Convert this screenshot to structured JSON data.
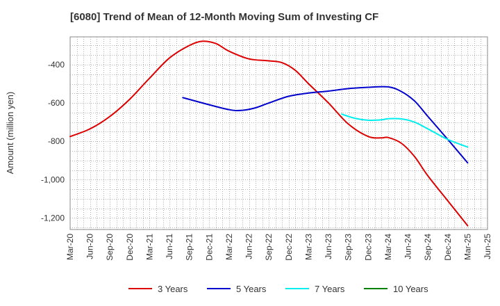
{
  "chart_data": {
    "type": "line",
    "title": "[6080]  Trend of Mean of 12-Month Moving Sum of Investing CF",
    "xlabel": "",
    "ylabel": "Amount (million yen)",
    "ylim": [
      -1260,
      -255
    ],
    "yticks": [
      -400,
      -600,
      -800,
      -1000,
      -1200
    ],
    "ytick_labels": [
      "-400",
      "-600",
      "-800",
      "-1,000",
      "-1,200"
    ],
    "x_range_months": [
      0,
      63
    ],
    "xticks": [
      {
        "m": 0,
        "label": "Mar-20"
      },
      {
        "m": 3,
        "label": "Jun-20"
      },
      {
        "m": 6,
        "label": "Sep-20"
      },
      {
        "m": 9,
        "label": "Dec-20"
      },
      {
        "m": 12,
        "label": "Mar-21"
      },
      {
        "m": 15,
        "label": "Jun-21"
      },
      {
        "m": 18,
        "label": "Sep-21"
      },
      {
        "m": 21,
        "label": "Dec-21"
      },
      {
        "m": 24,
        "label": "Mar-22"
      },
      {
        "m": 27,
        "label": "Jun-22"
      },
      {
        "m": 30,
        "label": "Sep-22"
      },
      {
        "m": 33,
        "label": "Dec-22"
      },
      {
        "m": 36,
        "label": "Mar-23"
      },
      {
        "m": 39,
        "label": "Jun-23"
      },
      {
        "m": 42,
        "label": "Sep-23"
      },
      {
        "m": 45,
        "label": "Dec-23"
      },
      {
        "m": 48,
        "label": "Mar-24"
      },
      {
        "m": 51,
        "label": "Jun-24"
      },
      {
        "m": 54,
        "label": "Sep-24"
      },
      {
        "m": 57,
        "label": "Dec-24"
      },
      {
        "m": 60,
        "label": "Mar-25"
      },
      {
        "m": 63,
        "label": "Jun-25"
      }
    ],
    "series": [
      {
        "name": "3 Years",
        "color": "#dd0000",
        "points": [
          [
            0,
            -775
          ],
          [
            3,
            -735
          ],
          [
            6,
            -670
          ],
          [
            9,
            -580
          ],
          [
            12,
            -470
          ],
          [
            15,
            -365
          ],
          [
            18,
            -300
          ],
          [
            20,
            -278
          ],
          [
            22,
            -290
          ],
          [
            24,
            -330
          ],
          [
            27,
            -370
          ],
          [
            30,
            -380
          ],
          [
            32,
            -390
          ],
          [
            34,
            -430
          ],
          [
            36,
            -500
          ],
          [
            39,
            -600
          ],
          [
            42,
            -710
          ],
          [
            45,
            -775
          ],
          [
            47,
            -782
          ],
          [
            48,
            -780
          ],
          [
            50,
            -810
          ],
          [
            52,
            -880
          ],
          [
            54,
            -980
          ],
          [
            57,
            -1110
          ],
          [
            60,
            -1240
          ]
        ]
      },
      {
        "name": "5 Years",
        "color": "#0000cc",
        "points": [
          [
            17,
            -572
          ],
          [
            20,
            -600
          ],
          [
            24,
            -635
          ],
          [
            26,
            -638
          ],
          [
            28,
            -625
          ],
          [
            30,
            -600
          ],
          [
            33,
            -565
          ],
          [
            36,
            -548
          ],
          [
            39,
            -538
          ],
          [
            42,
            -525
          ],
          [
            45,
            -518
          ],
          [
            48,
            -516
          ],
          [
            50,
            -540
          ],
          [
            52,
            -590
          ],
          [
            54,
            -670
          ],
          [
            57,
            -790
          ],
          [
            60,
            -912
          ]
        ]
      },
      {
        "name": "7 Years",
        "color": "#00eeee",
        "points": [
          [
            41,
            -658
          ],
          [
            43,
            -680
          ],
          [
            45,
            -690
          ],
          [
            47,
            -688
          ],
          [
            48,
            -682
          ],
          [
            50,
            -683
          ],
          [
            52,
            -700
          ],
          [
            54,
            -735
          ],
          [
            57,
            -790
          ],
          [
            60,
            -830
          ]
        ]
      },
      {
        "name": "10 Years",
        "color": "#008000",
        "points": []
      }
    ]
  },
  "legend": [
    {
      "label": "3 Years",
      "color": "#dd0000"
    },
    {
      "label": "5 Years",
      "color": "#0000cc"
    },
    {
      "label": "7 Years",
      "color": "#00eeee"
    },
    {
      "label": "10 Years",
      "color": "#008000"
    }
  ]
}
